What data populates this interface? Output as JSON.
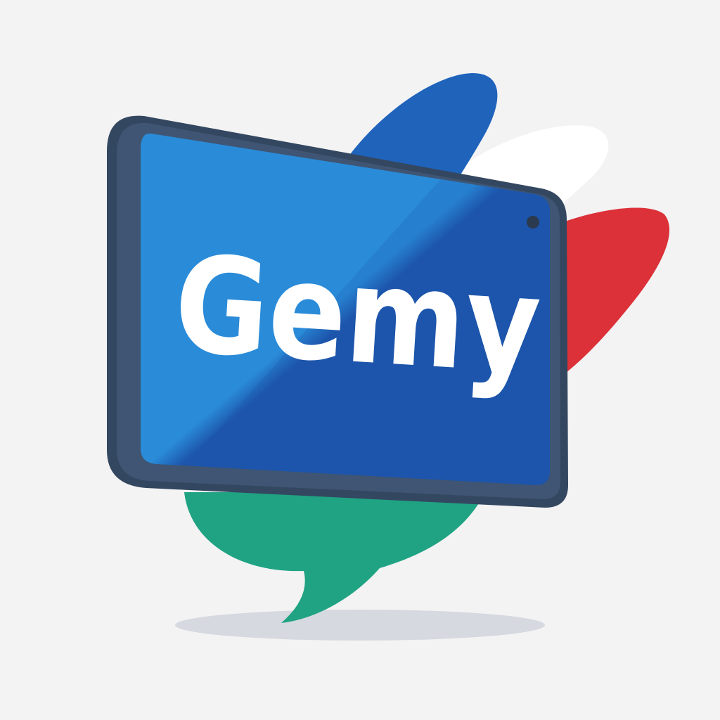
{
  "logo": {
    "wordmark": "Gemy",
    "icon": "tablet-speech-bubble-icon"
  },
  "colors": {
    "background": "#f3f3f4",
    "bubble_blue": "#1f63bb",
    "bubble_white": "#ffffff",
    "bubble_red": "#dc3138",
    "bubble_green": "#1fa383",
    "frame": "#344760",
    "frame_highlight": "#3f5573",
    "screen_light": "#2a8bd8",
    "screen_dark": "#1d57ad",
    "wordmark": "#ffffff",
    "camera_dot": "#2b3a4f",
    "shadow": "#d6d9df"
  }
}
